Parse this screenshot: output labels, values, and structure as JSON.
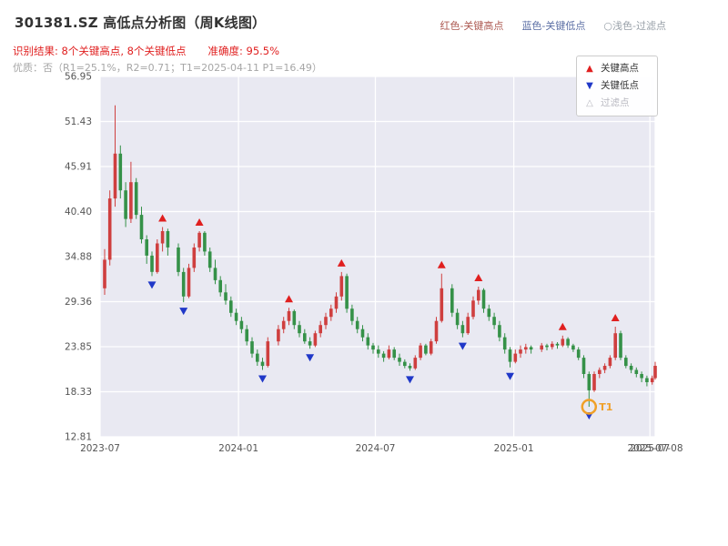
{
  "header": {
    "title": "301381.SZ 高低点分析图（周K线图）",
    "legend_top": {
      "items": [
        {
          "label": "红色-关键高点",
          "color": "#ad5a52"
        },
        {
          "label": "蓝色-关键低点",
          "color": "#5c6fa5"
        },
        {
          "label": "○浅色-过滤点",
          "color": "#98a0a8"
        }
      ]
    },
    "result_line": {
      "recognition": "识别结果: 8个关键高点, 8个关键低点",
      "accuracy": "准确度: 95.5%"
    },
    "quality_line": "优质：否（R1=25.1%，R2=0.71；T1=2025-04-11 P1=16.49）"
  },
  "legend_box": {
    "items": [
      {
        "symbol": "▲",
        "label": "关键高点",
        "color": "#e01f1f",
        "label_color": "#333333"
      },
      {
        "symbol": "▼",
        "label": "关键低点",
        "color": "#2038c8",
        "label_color": "#333333"
      },
      {
        "symbol": "△",
        "label": "过滤点",
        "color": "#b8b8c0",
        "label_color": "#b8b8c0"
      }
    ]
  },
  "chart_data": {
    "type": "candlestick",
    "title": "301381.SZ 高低点分析图（周K线图）",
    "xlabel": "",
    "ylabel": "",
    "grid": true,
    "legend_position": "upper right",
    "legend": [
      "关键高点",
      "关键低点",
      "过滤点"
    ],
    "x_range": [
      "2023-07-01",
      "2025-07-08"
    ],
    "ylim": [
      12.81,
      56.95
    ],
    "yticks": [
      12.81,
      18.33,
      23.85,
      29.36,
      34.88,
      40.4,
      45.91,
      51.43,
      56.95
    ],
    "xticks": [
      {
        "label": "2023-07",
        "date": "2023-07-01"
      },
      {
        "label": "2024-01",
        "date": "2024-01-01"
      },
      {
        "label": "2024-07",
        "date": "2024-07-01"
      },
      {
        "label": "2025-01",
        "date": "2025-01-01"
      },
      {
        "label": "2025-07",
        "date": "2025-07-01"
      },
      {
        "label": "2025-07-08",
        "date": "2025-07-08"
      }
    ],
    "candles": [
      [
        "2023-07-07",
        31.0,
        35.8,
        30.2,
        34.5
      ],
      [
        "2023-07-14",
        34.5,
        43.0,
        33.8,
        42.0
      ],
      [
        "2023-07-21",
        42.0,
        53.4,
        41.0,
        47.5
      ],
      [
        "2023-07-28",
        47.5,
        48.5,
        42.0,
        43.0
      ],
      [
        "2023-08-04",
        43.0,
        44.0,
        38.5,
        39.5
      ],
      [
        "2023-08-11",
        39.5,
        46.5,
        39.0,
        44.0
      ],
      [
        "2023-08-18",
        44.0,
        44.5,
        39.5,
        40.0
      ],
      [
        "2023-08-25",
        40.0,
        41.0,
        36.5,
        37.0
      ],
      [
        "2023-09-01",
        37.0,
        37.5,
        34.0,
        35.0
      ],
      [
        "2023-09-08",
        35.0,
        35.5,
        32.5,
        33.0
      ],
      [
        "2023-09-15",
        33.0,
        37.0,
        32.8,
        36.5
      ],
      [
        "2023-09-22",
        36.5,
        38.5,
        35.5,
        38.0
      ],
      [
        "2023-09-29",
        38.0,
        38.3,
        35.0,
        36.0
      ],
      [
        "2023-10-13",
        36.0,
        36.5,
        32.5,
        33.0
      ],
      [
        "2023-10-20",
        33.0,
        33.5,
        29.3,
        30.0
      ],
      [
        "2023-10-27",
        30.0,
        34.0,
        29.8,
        33.5
      ],
      [
        "2023-11-03",
        33.5,
        36.5,
        33.0,
        36.0
      ],
      [
        "2023-11-10",
        36.0,
        38.0,
        35.5,
        37.8
      ],
      [
        "2023-11-17",
        37.8,
        38.0,
        35.0,
        35.5
      ],
      [
        "2023-11-24",
        35.5,
        36.0,
        33.0,
        33.5
      ],
      [
        "2023-12-01",
        33.5,
        34.5,
        31.5,
        32.0
      ],
      [
        "2023-12-08",
        32.0,
        32.5,
        30.0,
        30.5
      ],
      [
        "2023-12-15",
        30.5,
        31.5,
        29.0,
        29.5
      ],
      [
        "2023-12-22",
        29.5,
        30.0,
        27.5,
        28.0
      ],
      [
        "2023-12-29",
        28.0,
        28.5,
        26.5,
        27.0
      ],
      [
        "2024-01-05",
        27.0,
        27.5,
        25.5,
        26.0
      ],
      [
        "2024-01-12",
        26.0,
        26.5,
        24.0,
        24.5
      ],
      [
        "2024-01-19",
        24.5,
        25.0,
        22.5,
        23.0
      ],
      [
        "2024-01-26",
        23.0,
        23.5,
        21.5,
        22.0
      ],
      [
        "2024-02-02",
        22.0,
        22.5,
        21.0,
        21.5
      ],
      [
        "2024-02-09",
        21.5,
        25.0,
        21.3,
        24.5
      ],
      [
        "2024-02-23",
        24.5,
        26.5,
        24.0,
        26.0
      ],
      [
        "2024-03-01",
        26.0,
        27.5,
        25.5,
        27.0
      ],
      [
        "2024-03-08",
        27.0,
        28.6,
        26.5,
        28.2
      ],
      [
        "2024-03-15",
        28.2,
        28.4,
        26.0,
        26.5
      ],
      [
        "2024-03-22",
        26.5,
        27.0,
        25.0,
        25.5
      ],
      [
        "2024-03-29",
        25.5,
        26.0,
        24.2,
        24.5
      ],
      [
        "2024-04-05",
        24.5,
        25.0,
        23.6,
        24.0
      ],
      [
        "2024-04-12",
        24.0,
        25.8,
        23.8,
        25.5
      ],
      [
        "2024-04-19",
        25.5,
        27.0,
        25.0,
        26.5
      ],
      [
        "2024-04-26",
        26.5,
        28.0,
        26.0,
        27.5
      ],
      [
        "2024-05-03",
        27.5,
        29.0,
        27.0,
        28.5
      ],
      [
        "2024-05-10",
        28.5,
        30.5,
        28.0,
        30.0
      ],
      [
        "2024-05-17",
        30.0,
        33.0,
        29.5,
        32.5
      ],
      [
        "2024-05-24",
        32.5,
        32.8,
        28.0,
        28.5
      ],
      [
        "2024-05-31",
        28.5,
        29.0,
        26.5,
        27.0
      ],
      [
        "2024-06-07",
        27.0,
        27.5,
        25.5,
        26.0
      ],
      [
        "2024-06-14",
        26.0,
        26.5,
        24.5,
        25.0
      ],
      [
        "2024-06-21",
        25.0,
        25.5,
        23.5,
        24.0
      ],
      [
        "2024-06-28",
        24.0,
        24.3,
        23.0,
        23.5
      ],
      [
        "2024-07-05",
        23.5,
        24.0,
        22.5,
        23.0
      ],
      [
        "2024-07-12",
        23.0,
        23.3,
        22.0,
        22.5
      ],
      [
        "2024-07-19",
        22.5,
        24.0,
        22.3,
        23.5
      ],
      [
        "2024-07-26",
        23.5,
        23.8,
        22.2,
        22.5
      ],
      [
        "2024-08-02",
        22.5,
        23.0,
        21.5,
        22.0
      ],
      [
        "2024-08-09",
        22.0,
        22.3,
        21.2,
        21.5
      ],
      [
        "2024-08-16",
        21.5,
        21.8,
        20.9,
        21.2
      ],
      [
        "2024-08-23",
        21.2,
        22.8,
        21.0,
        22.5
      ],
      [
        "2024-08-30",
        22.5,
        24.3,
        22.2,
        24.0
      ],
      [
        "2024-09-06",
        24.0,
        24.2,
        22.8,
        23.0
      ],
      [
        "2024-09-13",
        23.0,
        24.8,
        22.8,
        24.5
      ],
      [
        "2024-09-20",
        24.5,
        27.5,
        24.2,
        27.0
      ],
      [
        "2024-09-27",
        27.0,
        32.8,
        26.8,
        31.0
      ],
      [
        "2024-10-11",
        31.0,
        31.5,
        27.5,
        28.0
      ],
      [
        "2024-10-18",
        28.0,
        28.5,
        26.0,
        26.5
      ],
      [
        "2024-10-25",
        26.5,
        27.0,
        25.0,
        25.5
      ],
      [
        "2024-11-01",
        25.5,
        28.0,
        25.3,
        27.5
      ],
      [
        "2024-11-08",
        27.5,
        30.0,
        27.2,
        29.5
      ],
      [
        "2024-11-15",
        29.5,
        31.2,
        29.0,
        30.8
      ],
      [
        "2024-11-22",
        30.8,
        31.0,
        28.0,
        28.5
      ],
      [
        "2024-11-29",
        28.5,
        29.0,
        27.0,
        27.5
      ],
      [
        "2024-12-06",
        27.5,
        28.0,
        26.0,
        26.5
      ],
      [
        "2024-12-13",
        26.5,
        27.0,
        24.5,
        25.0
      ],
      [
        "2024-12-20",
        25.0,
        25.5,
        23.0,
        23.5
      ],
      [
        "2024-12-27",
        23.5,
        23.8,
        21.3,
        22.0
      ],
      [
        "2025-01-03",
        22.0,
        23.5,
        21.8,
        23.0
      ],
      [
        "2025-01-10",
        23.0,
        24.0,
        22.5,
        23.5
      ],
      [
        "2025-01-17",
        23.5,
        24.2,
        23.0,
        23.8
      ],
      [
        "2025-01-24",
        23.8,
        24.0,
        23.0,
        23.5
      ],
      [
        "2025-02-07",
        23.5,
        24.3,
        23.2,
        24.0
      ],
      [
        "2025-02-14",
        24.0,
        24.2,
        23.4,
        23.8
      ],
      [
        "2025-02-21",
        23.8,
        24.5,
        23.5,
        24.2
      ],
      [
        "2025-02-28",
        24.2,
        24.4,
        23.6,
        24.0
      ],
      [
        "2025-03-07",
        24.0,
        25.2,
        23.8,
        24.8
      ],
      [
        "2025-03-14",
        24.8,
        25.0,
        23.7,
        24.0
      ],
      [
        "2025-03-21",
        24.0,
        24.2,
        23.2,
        23.5
      ],
      [
        "2025-03-28",
        23.5,
        23.8,
        22.2,
        22.5
      ],
      [
        "2025-04-04",
        22.5,
        22.8,
        20.0,
        20.5
      ],
      [
        "2025-04-11",
        20.5,
        20.8,
        16.49,
        18.5
      ],
      [
        "2025-04-18",
        18.5,
        20.8,
        18.3,
        20.5
      ],
      [
        "2025-04-25",
        20.5,
        21.3,
        20.0,
        21.0
      ],
      [
        "2025-05-02",
        21.0,
        21.8,
        20.6,
        21.5
      ],
      [
        "2025-05-09",
        21.5,
        22.8,
        21.2,
        22.5
      ],
      [
        "2025-05-16",
        22.5,
        26.3,
        22.2,
        25.5
      ],
      [
        "2025-05-23",
        25.5,
        25.8,
        22.2,
        22.5
      ],
      [
        "2025-05-30",
        22.5,
        22.8,
        21.2,
        21.5
      ],
      [
        "2025-06-06",
        21.5,
        21.8,
        20.6,
        21.0
      ],
      [
        "2025-06-13",
        21.0,
        21.3,
        20.1,
        20.5
      ],
      [
        "2025-06-20",
        20.5,
        20.8,
        19.5,
        20.0
      ],
      [
        "2025-06-27",
        20.0,
        20.3,
        19.0,
        19.5
      ],
      [
        "2025-07-04",
        19.5,
        20.3,
        19.2,
        20.0
      ],
      [
        "2025-07-08",
        20.0,
        22.0,
        19.8,
        21.5
      ]
    ],
    "key_highs": [
      {
        "date": "2023-09-22",
        "price": 38.5
      },
      {
        "date": "2023-11-10",
        "price": 38.0
      },
      {
        "date": "2024-03-08",
        "price": 28.6
      },
      {
        "date": "2024-05-17",
        "price": 33.0
      },
      {
        "date": "2024-09-27",
        "price": 32.8
      },
      {
        "date": "2024-11-15",
        "price": 31.2
      },
      {
        "date": "2025-03-07",
        "price": 25.2
      },
      {
        "date": "2025-05-16",
        "price": 26.3
      }
    ],
    "key_lows": [
      {
        "date": "2023-09-08",
        "price": 32.5
      },
      {
        "date": "2023-10-20",
        "price": 29.3
      },
      {
        "date": "2024-02-02",
        "price": 21.0
      },
      {
        "date": "2024-04-05",
        "price": 23.6
      },
      {
        "date": "2024-08-16",
        "price": 20.9
      },
      {
        "date": "2024-10-25",
        "price": 25.0
      },
      {
        "date": "2024-12-27",
        "price": 21.3
      },
      {
        "date": "2025-04-11",
        "price": 16.49
      }
    ],
    "t1_marker": {
      "date": "2025-04-11",
      "price": 16.49,
      "label": "T1"
    },
    "colors": {
      "up": "#cf3f3f",
      "down": "#359148",
      "plot_bg": "#e9e9f2",
      "grid": "#ffffff",
      "key_high": "#e01f1f",
      "key_low": "#2038c8",
      "t1": "#f0a028"
    }
  }
}
